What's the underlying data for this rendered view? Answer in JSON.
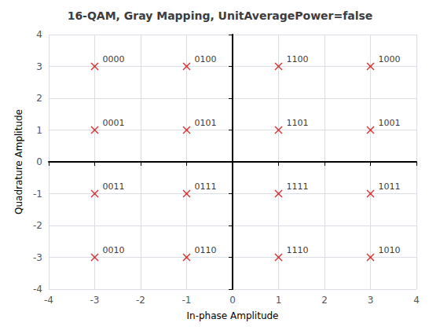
{
  "chart_data": {
    "type": "scatter",
    "title": "16-QAM, Gray Mapping, UnitAveragePower=false",
    "xlabel": "In-phase Amplitude",
    "ylabel": "Quadrature Amplitude",
    "xlim": [
      -4,
      4
    ],
    "ylim": [
      -4,
      4
    ],
    "xticks": [
      -4,
      -3,
      -2,
      -1,
      0,
      1,
      2,
      3,
      4
    ],
    "yticks": [
      -4,
      -3,
      -2,
      -1,
      0,
      1,
      2,
      3,
      4
    ],
    "color": "#CC0000",
    "marker": "x",
    "grid": true,
    "annotations": [
      {
        "text": "0000",
        "x": -3,
        "y": 3
      },
      {
        "text": "0100",
        "x": -1,
        "y": 3
      },
      {
        "text": "1100",
        "x": 1,
        "y": 3
      },
      {
        "text": "1000",
        "x": 3,
        "y": 3
      },
      {
        "text": "0001",
        "x": -3,
        "y": 1
      },
      {
        "text": "0101",
        "x": -1,
        "y": 1
      },
      {
        "text": "1101",
        "x": 1,
        "y": 1
      },
      {
        "text": "1001",
        "x": 3,
        "y": 1
      },
      {
        "text": "0011",
        "x": -3,
        "y": -1
      },
      {
        "text": "0111",
        "x": -1,
        "y": -1
      },
      {
        "text": "1111",
        "x": 1,
        "y": -1
      },
      {
        "text": "1011",
        "x": 3,
        "y": -1
      },
      {
        "text": "0010",
        "x": -3,
        "y": -3
      },
      {
        "text": "0110",
        "x": -1,
        "y": -3
      },
      {
        "text": "1110",
        "x": 1,
        "y": -3
      },
      {
        "text": "1010",
        "x": 3,
        "y": -3
      }
    ]
  }
}
